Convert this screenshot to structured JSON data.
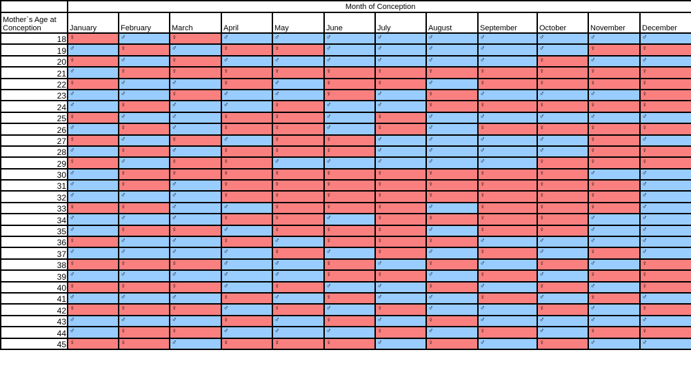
{
  "header": {
    "title": "Month of Conception",
    "age_label": "Mother`s Age at Conception",
    "months": [
      "January",
      "February",
      "March",
      "April",
      "May",
      "June",
      "July",
      "August",
      "September",
      "October",
      "November",
      "December"
    ]
  },
  "symbols": {
    "F": "♀",
    "M": "♂"
  },
  "colors": {
    "F": "#fa8080",
    "M": "#99ccff"
  },
  "rows": [
    {
      "age": "18",
      "cells": "FMFMMMMMMMMM"
    },
    {
      "age": "19",
      "cells": "MFMFFMMMMMFF"
    },
    {
      "age": "20",
      "cells": "FMFMMMMMMFMM"
    },
    {
      "age": "21",
      "cells": "MFFFFFFFFFFF"
    },
    {
      "age": "22",
      "cells": "FMMFMFFMFFFF"
    },
    {
      "age": "23",
      "cells": "MMFMMFMFMMMF"
    },
    {
      "age": "24",
      "cells": "MFMMFMMFFFFF"
    },
    {
      "age": "25",
      "cells": "FMMFFMFMMMMM"
    },
    {
      "age": "26",
      "cells": "MFMFFMFMFFFF"
    },
    {
      "age": "27",
      "cells": "FMFMFFMMMMFM"
    },
    {
      "age": "28",
      "cells": "MFMFFFMMMMFF"
    },
    {
      "age": "29",
      "cells": "FMFFMMMMMFFF"
    },
    {
      "age": "30",
      "cells": "MFFFFFFFFFMM"
    },
    {
      "age": "31",
      "cells": "MFMFFFFFFFFM"
    },
    {
      "age": "32",
      "cells": "MMMFFFFFFFFM"
    },
    {
      "age": "33",
      "cells": "FFMMFFFMFFFM"
    },
    {
      "age": "34",
      "cells": "MMMFFMFFFFMM"
    },
    {
      "age": "35",
      "cells": "MFFMFFFMFFMM"
    },
    {
      "age": "36",
      "cells": "FMMFMFFFMMMM"
    },
    {
      "age": "37",
      "cells": "MMMMFMFMFMFM"
    },
    {
      "age": "38",
      "cells": "FFFMMFMFMFMF"
    },
    {
      "age": "39",
      "cells": "MMMMMFFMFMFF"
    },
    {
      "age": "40",
      "cells": "FFFMFMMFMFMF"
    },
    {
      "age": "41",
      "cells": "MMMFMFMMFMFM"
    },
    {
      "age": "42",
      "cells": "FFFMFMFMMFMF"
    },
    {
      "age": "43",
      "cells": "MMMFMFMFMMMM"
    },
    {
      "age": "44",
      "cells": "MFFMMMFMFMFF"
    },
    {
      "age": "45",
      "cells": "FFMFFFMFMFMM"
    }
  ]
}
